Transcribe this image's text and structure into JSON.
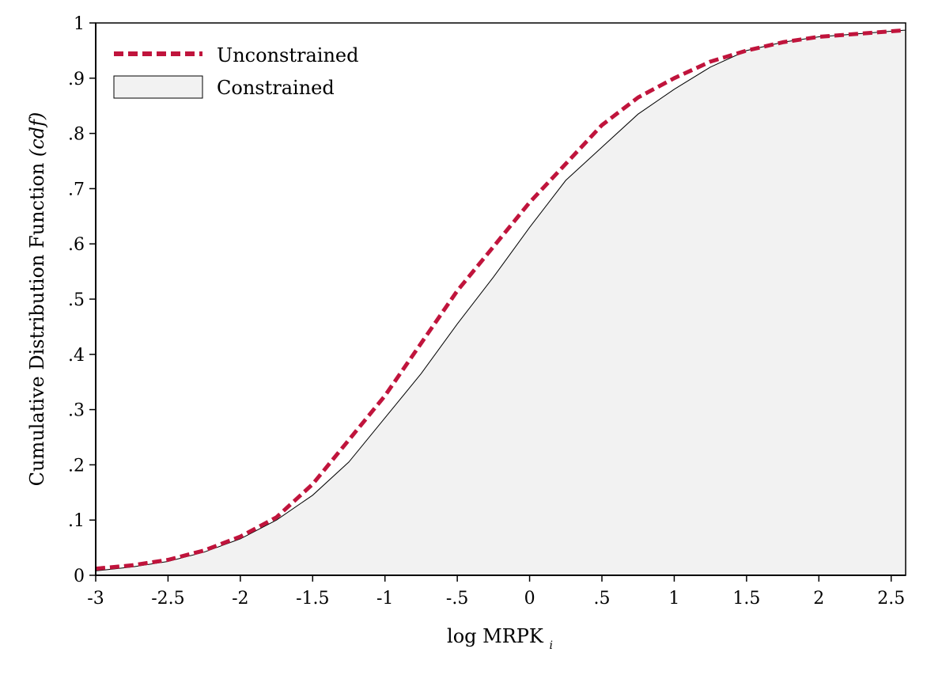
{
  "chart_data": {
    "type": "line",
    "title": "",
    "xlabel": "log MRPK",
    "xlabel_subscript": "i",
    "ylabel": "Cumulative Distribution Function",
    "ylabel_suffix": "(cdf)",
    "xlim": [
      -3,
      2.6
    ],
    "ylim": [
      0,
      1
    ],
    "x_ticks": [
      {
        "value": -3,
        "label": "-3"
      },
      {
        "value": -2.5,
        "label": "-2.5"
      },
      {
        "value": -2,
        "label": "-2"
      },
      {
        "value": -1.5,
        "label": "-1.5"
      },
      {
        "value": -1,
        "label": "-1"
      },
      {
        "value": -0.5,
        "label": "-.5"
      },
      {
        "value": 0,
        "label": "0"
      },
      {
        "value": 0.5,
        "label": ".5"
      },
      {
        "value": 1,
        "label": "1"
      },
      {
        "value": 1.5,
        "label": "1.5"
      },
      {
        "value": 2,
        "label": "2"
      },
      {
        "value": 2.5,
        "label": "2.5"
      }
    ],
    "y_ticks": [
      {
        "value": 0,
        "label": "0"
      },
      {
        "value": 0.1,
        "label": ".1"
      },
      {
        "value": 0.2,
        "label": ".2"
      },
      {
        "value": 0.3,
        "label": ".3"
      },
      {
        "value": 0.4,
        "label": ".4"
      },
      {
        "value": 0.5,
        "label": ".5"
      },
      {
        "value": 0.6,
        "label": ".6"
      },
      {
        "value": 0.7,
        "label": ".7"
      },
      {
        "value": 0.8,
        "label": ".8"
      },
      {
        "value": 0.9,
        "label": ".9"
      },
      {
        "value": 1,
        "label": "1"
      }
    ],
    "grid": false,
    "legend_position": "top-left",
    "series": [
      {
        "name": "Unconstrained",
        "style": "dashed-line",
        "color": "#c0143c",
        "x": [
          -3,
          -2.75,
          -2.5,
          -2.25,
          -2,
          -1.75,
          -1.5,
          -1.25,
          -1,
          -0.75,
          -0.5,
          -0.25,
          0,
          0.25,
          0.5,
          0.75,
          1,
          1.25,
          1.5,
          1.75,
          2,
          2.25,
          2.6
        ],
        "y": [
          0.012,
          0.018,
          0.028,
          0.045,
          0.07,
          0.105,
          0.165,
          0.245,
          0.325,
          0.42,
          0.515,
          0.595,
          0.675,
          0.745,
          0.815,
          0.865,
          0.9,
          0.93,
          0.95,
          0.965,
          0.975,
          0.98,
          0.987
        ]
      },
      {
        "name": "Constrained",
        "style": "filled-area",
        "color": "#f2f2f2",
        "x": [
          -3,
          -2.75,
          -2.5,
          -2.25,
          -2,
          -1.75,
          -1.5,
          -1.25,
          -1,
          -0.75,
          -0.5,
          -0.25,
          0,
          0.25,
          0.5,
          0.75,
          1,
          1.25,
          1.5,
          1.75,
          2,
          2.25,
          2.6
        ],
        "y": [
          0.008,
          0.015,
          0.025,
          0.042,
          0.066,
          0.1,
          0.145,
          0.205,
          0.285,
          0.365,
          0.455,
          0.54,
          0.63,
          0.715,
          0.775,
          0.835,
          0.88,
          0.92,
          0.95,
          0.965,
          0.975,
          0.98,
          0.987
        ]
      }
    ]
  }
}
